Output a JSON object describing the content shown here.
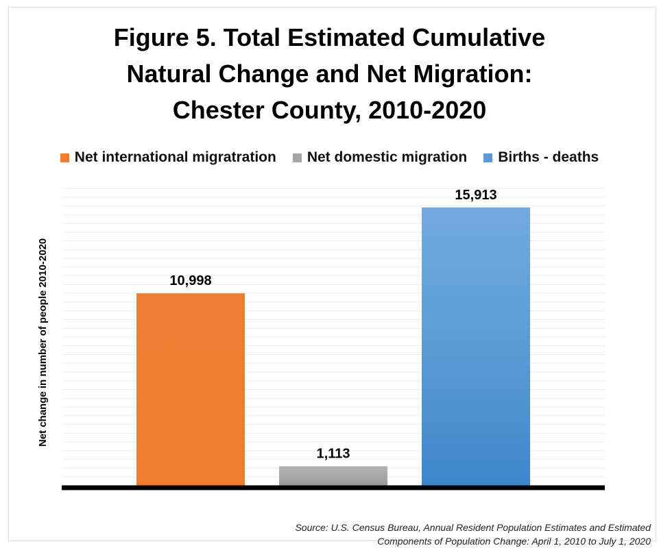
{
  "title_lines": [
    "Figure 5. Total Estimated Cumulative",
    "Natural Change and Net Migration:",
    "Chester County, 2010-2020"
  ],
  "source_lines": [
    "Source: U.S. Census Bureau, Annual Resident Population Estimates and Estimated",
    "Components of Population Change: April 1, 2010 to July 1, 2020"
  ],
  "chart_data": {
    "type": "bar",
    "title": "Figure 5. Total Estimated Cumulative Natural Change and Net Migration: Chester County, 2010-2020",
    "xlabel": "",
    "ylabel": "Net change in number of people 2010-2020",
    "ylim": [
      0,
      17000
    ],
    "grid": true,
    "legend_position": "top",
    "series": [
      {
        "name": "Net international migratration",
        "value": 10998,
        "label": "10,998",
        "color": "#ED7D31"
      },
      {
        "name": "Net domestic migration",
        "value": 1113,
        "label": "1,113",
        "color": "#A5A5A5"
      },
      {
        "name": "Births  - deaths",
        "value": 15913,
        "label": "15,913",
        "color": "#5B9BD5"
      }
    ]
  }
}
